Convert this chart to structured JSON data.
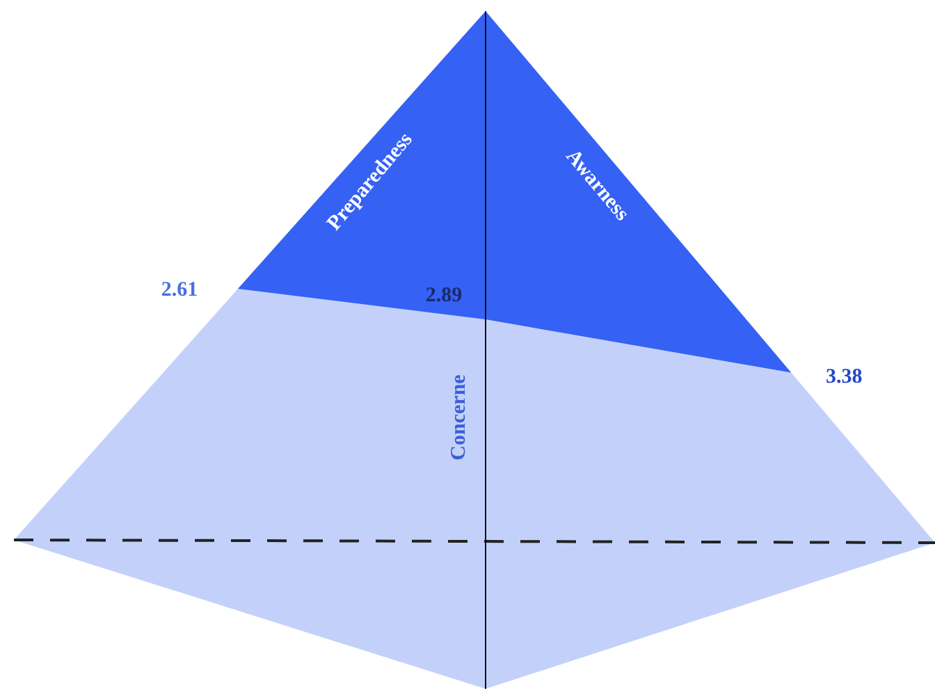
{
  "chart_data": {
    "type": "other",
    "categories": [
      "Preparedness",
      "Concerne",
      "Awarness"
    ],
    "series": [
      {
        "color": "#3561f5",
        "values": [
          2.61,
          2.89,
          3.38
        ]
      }
    ],
    "data_labels": true
  }
}
